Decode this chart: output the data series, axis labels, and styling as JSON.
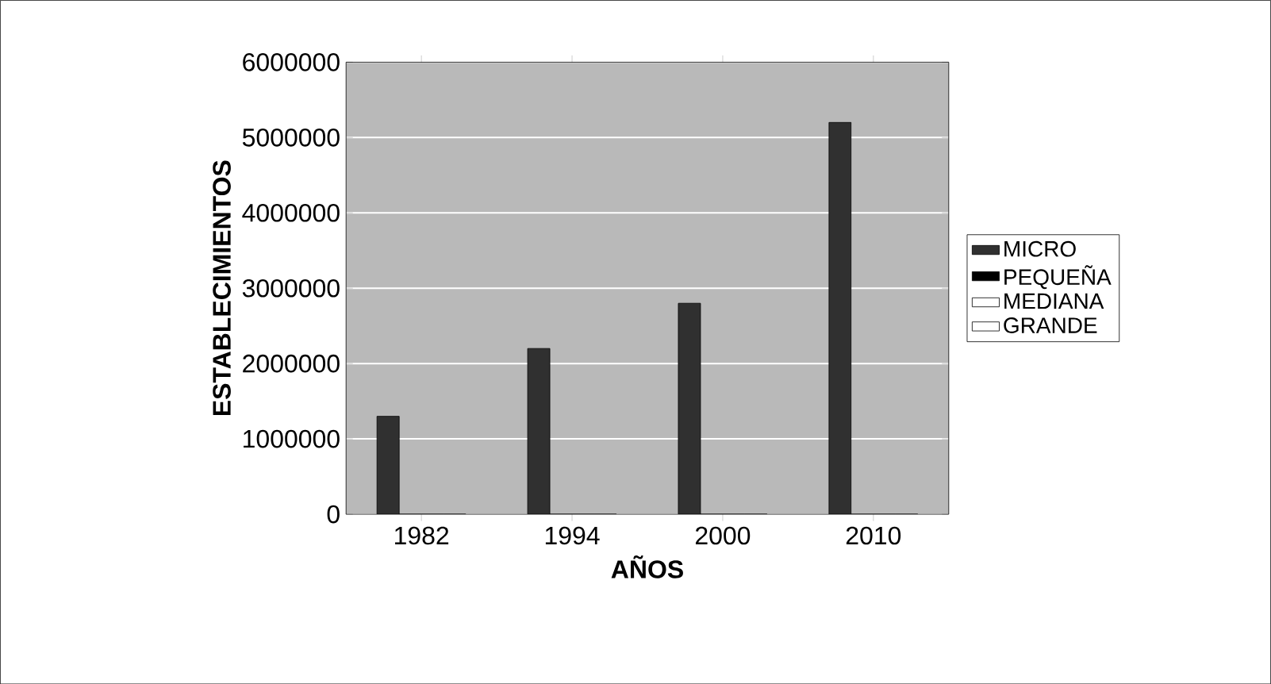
{
  "chart_data": {
    "type": "bar",
    "xlabel": "AÑOS",
    "ylabel": "ESTABLECIMIENTOS",
    "categories": [
      "1982",
      "1994",
      "2000",
      "2010"
    ],
    "series": [
      {
        "name": "MICRO",
        "color": "#303030",
        "values": [
          1300000,
          2200000,
          2800000,
          5200000
        ]
      },
      {
        "name": "PEQUEÑA",
        "color": "#000000",
        "values": [
          0,
          0,
          0,
          0
        ]
      },
      {
        "name": "MEDIANA",
        "color": "#ffffff",
        "values": [
          0,
          0,
          0,
          0
        ]
      },
      {
        "name": "GRANDE",
        "color": "#ffffff",
        "values": [
          0,
          0,
          0,
          0
        ]
      }
    ],
    "ylim": [
      0,
      6000000
    ],
    "yticks": [
      0,
      1000000,
      2000000,
      3000000,
      4000000,
      5000000,
      6000000
    ],
    "grid": "y",
    "legend": "right"
  }
}
